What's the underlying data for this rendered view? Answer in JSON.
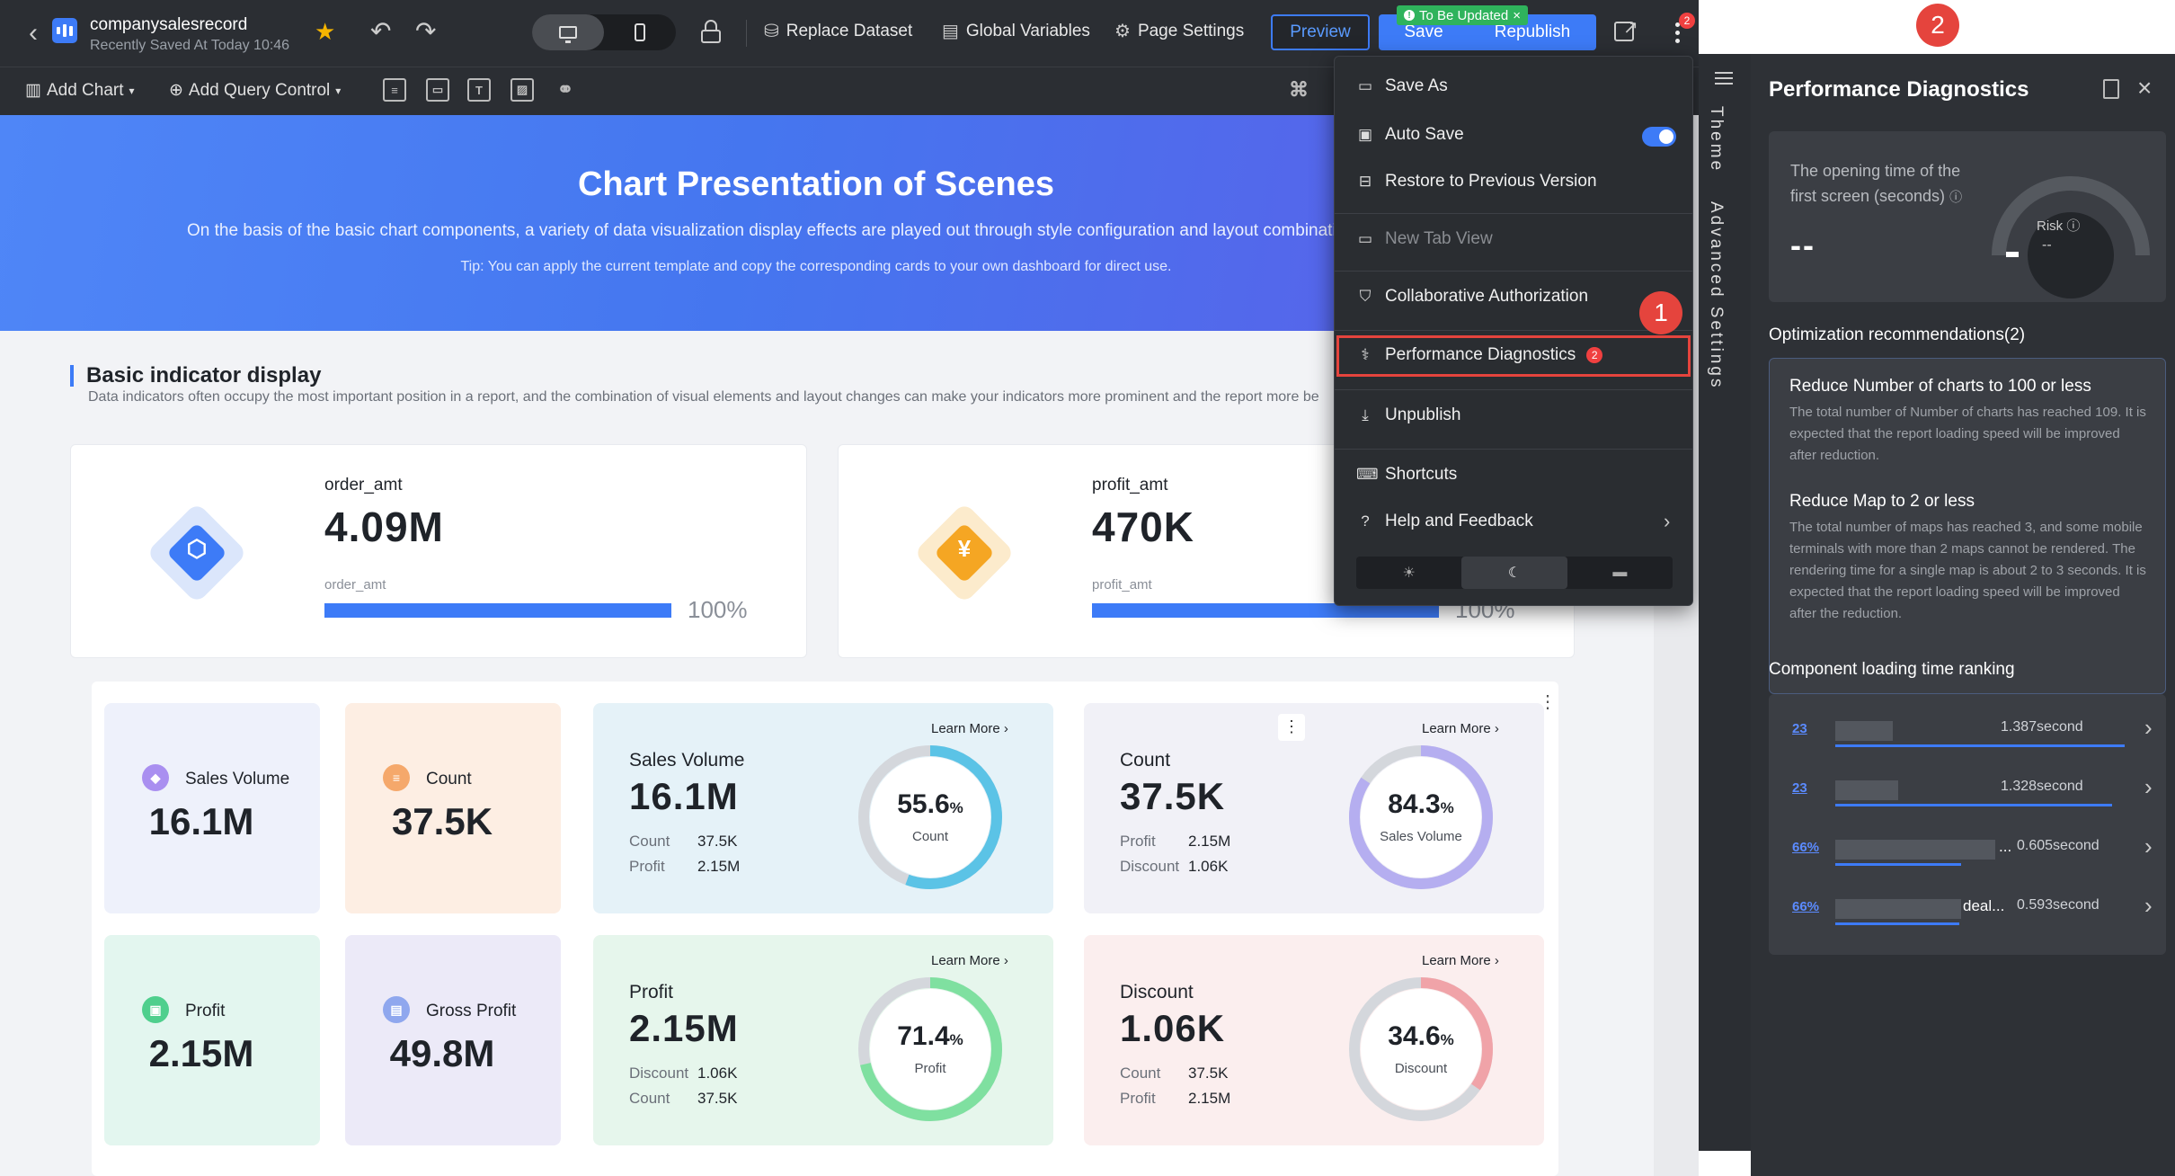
{
  "topbar": {
    "report_name": "companysalesrecord",
    "saved_info": "Recently Saved At Today 10:46",
    "replace_dataset": "Replace Dataset",
    "global_variables": "Global Variables",
    "page_settings": "Page Settings",
    "preview": "Preview",
    "save": "Save",
    "republish": "Republish",
    "update_badge": "To Be Updated",
    "more_badge": "2"
  },
  "toolbar": {
    "add_chart": "Add Chart",
    "add_query_control": "Add Query Control"
  },
  "hero": {
    "title": "Chart Presentation of Scenes",
    "subtitle": "On the basis of the basic chart components, a variety of data visualization display effects are played out through style configuration and layout combination",
    "tip": "Tip: You can apply the current template and copy the corresponding cards to your own dashboard for direct use."
  },
  "section": {
    "title": "Basic indicator display",
    "desc": "Data indicators often occupy the most important position in a report, and the combination of visual elements and layout changes can make your indicators more prominent and the report more be"
  },
  "indicators": [
    {
      "label": "order_amt",
      "value": "4.09M",
      "sub": "order_amt",
      "pct": "100%",
      "progress": 1.0,
      "color": "#3d7bf7"
    },
    {
      "label": "profit_amt",
      "value": "470K",
      "sub": "profit_amt",
      "pct": "100%",
      "progress": 1.0,
      "color": "#f5a623"
    }
  ],
  "kpi_small": [
    {
      "label": "Sales Volume",
      "value": "16.1M",
      "bg": "#eef1fb",
      "chip": "#a98ff0"
    },
    {
      "label": "Count",
      "value": "37.5K",
      "bg": "#fdeee3",
      "chip": "#f5a86b"
    },
    {
      "label": "Profit",
      "value": "2.15M",
      "bg": "#e3f6ef",
      "chip": "#4fcf8d"
    },
    {
      "label": "Gross Profit",
      "value": "49.8M",
      "bg": "#eceaf8",
      "chip": "#8fa7ee"
    }
  ],
  "kpi_wide": [
    {
      "label": "Sales Volume",
      "value": "16.1M",
      "r1k": "Count",
      "r1v": "37.5K",
      "r2k": "Profit",
      "r2v": "2.15M",
      "learn": "Learn More",
      "gauge_pct": "55.6",
      "gauge_label": "Count",
      "ratio": 0.556,
      "color": "#5bc3e6",
      "bg": "#e5f2f8"
    },
    {
      "label": "Count",
      "value": "37.5K",
      "r1k": "Profit",
      "r1v": "2.15M",
      "r2k": "Discount",
      "r2v": "1.06K",
      "learn": "Learn More",
      "gauge_pct": "84.3",
      "gauge_label": "Sales Volume",
      "ratio": 0.843,
      "color": "#b5aef0",
      "bg": "#f1f1f7"
    },
    {
      "label": "Profit",
      "value": "2.15M",
      "r1k": "Discount",
      "r1v": "1.06K",
      "r2k": "Count",
      "r2v": "37.5K",
      "learn": "Learn More",
      "gauge_pct": "71.4",
      "gauge_label": "Profit",
      "ratio": 0.714,
      "color": "#7fe0a0",
      "bg": "#e6f6ec"
    },
    {
      "label": "Discount",
      "value": "1.06K",
      "r1k": "Count",
      "r1v": "37.5K",
      "r2k": "Profit",
      "r2v": "2.15M",
      "learn": "Learn More",
      "gauge_pct": "34.6",
      "gauge_label": "Discount",
      "ratio": 0.346,
      "color": "#f0a3a8",
      "bg": "#fbeeee"
    }
  ],
  "menu": {
    "save_as": "Save As",
    "auto_save": "Auto Save",
    "restore": "Restore to Previous Version",
    "new_tab": "New Tab View",
    "collab": "Collaborative Authorization",
    "perf": "Performance Diagnostics",
    "perf_badge": "2",
    "unpublish": "Unpublish",
    "shortcuts": "Shortcuts",
    "help": "Help and Feedback"
  },
  "markers": {
    "one": "1",
    "two": "2"
  },
  "side_tabs": {
    "theme": "Theme",
    "advanced": "Advanced Settings"
  },
  "perf_panel": {
    "title": "Performance Diagnostics",
    "opening_label": "The opening time of the first screen (seconds)",
    "opening_value": "--",
    "risk_label": "Risk",
    "risk_value": "--",
    "opt_heading": "Optimization recommendations(2)",
    "recommendations": [
      {
        "title": "Reduce Number of charts to 100 or less",
        "desc": "The total number of Number of charts has reached 109. It is expected that the report loading speed will be improved after reduction."
      },
      {
        "title": "Reduce Map to 2 or less",
        "desc": "The total number of maps has reached 3, and some mobile terminals with more than 2 maps cannot be rendered. The rendering time for a single map is about 2 to 3 seconds. It is expected that the report loading speed will be improved after the reduction."
      }
    ],
    "ranking_heading": "Component loading time ranking",
    "ranking": [
      {
        "icon": "23",
        "name": "",
        "time": "1.387second",
        "ratio": 1.0
      },
      {
        "icon": "23",
        "name": "",
        "time": "1.328second",
        "ratio": 0.957
      },
      {
        "icon": "66%",
        "name": "...",
        "time": "0.605second",
        "ratio": 0.436
      },
      {
        "icon": "66%",
        "name": "deal...",
        "time": "0.593second",
        "ratio": 0.428
      }
    ]
  }
}
